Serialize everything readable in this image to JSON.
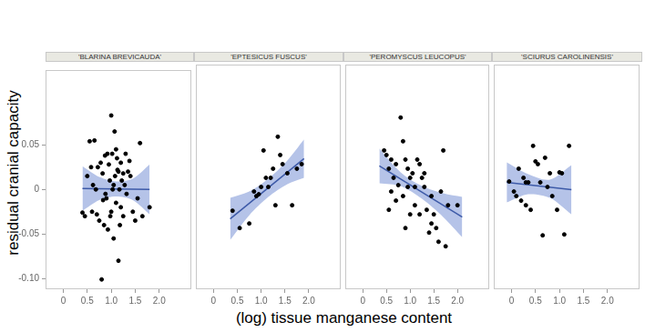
{
  "ylabel": "residual cranial capacity",
  "xlabel": "(log) tissue manganese content",
  "chart_data": [
    {
      "type": "scatter",
      "title": "'BLARINA BREVICAUDA'",
      "xlim": [
        -0.37,
        2.67
      ],
      "ylim": [
        -0.112,
        0.134
      ],
      "xticks": [
        0,
        0.5,
        {
          "value": 1,
          "label": "1.0"
        },
        1.5,
        {
          "value": 2,
          "label": "2.0"
        }
      ],
      "yticks": [
        {
          "value": -0.1,
          "label": "-0.10"
        },
        -0.05,
        0,
        0.05
      ],
      "grid": false,
      "series": [
        {
          "type": "scatter",
          "color": "#000000",
          "x": [
            0.4,
            0.45,
            0.5,
            0.55,
            0.6,
            0.62,
            0.65,
            0.7,
            0.72,
            0.75,
            0.78,
            0.8,
            0.82,
            0.85,
            0.87,
            0.9,
            0.92,
            0.95,
            0.97,
            1.0,
            1.0,
            1.02,
            1.05,
            1.05,
            1.07,
            1.1,
            1.1,
            1.12,
            1.15,
            1.15,
            1.17,
            1.2,
            1.2,
            1.22,
            1.25,
            1.25,
            1.28,
            1.3,
            1.32,
            1.35,
            1.4,
            1.45,
            1.5,
            1.55,
            1.6,
            1.65,
            1.8,
            0.68,
            0.88,
            0.98,
            1.08,
            1.18,
            0.58,
            1.38,
            0.83,
            1.03,
            0.93,
            1.13
          ],
          "values": [
            -0.026,
            -0.03,
            0.015,
            0.054,
            -0.025,
            0.005,
            0.055,
            -0.028,
            0.025,
            -0.035,
            0.03,
            -0.101,
            0.018,
            -0.04,
            0.038,
            -0.01,
            0.04,
            0.028,
            0.01,
            0.083,
            -0.025,
            0.04,
            -0.055,
            0.005,
            0.065,
            0.045,
            -0.015,
            0.035,
            -0.08,
            0.02,
            0.0,
            -0.02,
            0.03,
            0.01,
            0.018,
            -0.03,
            0.005,
            0.04,
            -0.005,
            0.02,
            0.015,
            -0.025,
            -0.035,
            -0.01,
            0.052,
            -0.03,
            -0.02,
            0.0,
            -0.005,
            -0.03,
            0.015,
            -0.04,
            0.025,
            0.032,
            -0.012,
            0.0,
            -0.045,
            0.022
          ]
        },
        {
          "type": "line",
          "color": "#3d5aa8",
          "x": [
            0.4,
            1.8
          ],
          "values": [
            0.001,
            0.0
          ]
        },
        {
          "type": "band",
          "color": "#b5c3e8",
          "x": [
            0.4,
            0.75,
            1.1,
            1.45,
            1.8
          ],
          "lower": [
            -0.024,
            -0.012,
            -0.008,
            -0.012,
            -0.028
          ],
          "upper": [
            0.026,
            0.014,
            0.009,
            0.012,
            0.028
          ]
        }
      ]
    },
    {
      "type": "scatter",
      "title": "'EPTESICUS FUSCUS'",
      "xlim": [
        -0.37,
        2.67
      ],
      "ylim": [
        -0.112,
        0.134
      ],
      "xticks": [
        0,
        0.5,
        {
          "value": 1,
          "label": "1.0"
        },
        1.5,
        {
          "value": 2,
          "label": "2.0"
        }
      ],
      "yticks": [
        {
          "value": -0.1,
          "label": "-0.10"
        },
        -0.05,
        0,
        0.05
      ],
      "grid": false,
      "tick_labels": "x",
      "series": [
        {
          "type": "scatter",
          "color": "#000000",
          "x": [
            0.4,
            0.55,
            0.75,
            0.85,
            0.9,
            0.95,
            1.0,
            1.05,
            1.1,
            1.15,
            1.2,
            1.25,
            1.3,
            1.35,
            1.4,
            1.45,
            1.55,
            1.65,
            1.75,
            1.85
          ],
          "values": [
            -0.026,
            -0.045,
            -0.04,
            -0.005,
            -0.01,
            -0.008,
            0.0,
            0.04,
            0.01,
            0.0,
            0.01,
            0.02,
            -0.02,
            0.055,
            0.035,
            0.025,
            0.015,
            -0.02,
            0.02,
            0.025
          ]
        },
        {
          "type": "line",
          "color": "#3d5aa8",
          "x": [
            0.35,
            1.9
          ],
          "values": [
            -0.035,
            0.031
          ]
        },
        {
          "type": "band",
          "color": "#b5c3e8",
          "x": [
            0.35,
            0.75,
            1.15,
            1.55,
            1.9
          ],
          "lower": [
            -0.058,
            -0.031,
            -0.011,
            0.003,
            0.01
          ],
          "upper": [
            -0.012,
            -0.005,
            0.009,
            0.029,
            0.052
          ]
        }
      ]
    },
    {
      "type": "scatter",
      "title": "'PEROMYSCUS LEUCOPUS'",
      "xlim": [
        -0.37,
        2.67
      ],
      "ylim": [
        -0.112,
        0.134
      ],
      "xticks": [
        0,
        0.5,
        {
          "value": 1,
          "label": "1.0"
        },
        1.5,
        {
          "value": 2,
          "label": "2.0"
        }
      ],
      "yticks": [
        {
          "value": -0.1,
          "label": "-0.10"
        },
        -0.05,
        0,
        0.05
      ],
      "grid": false,
      "tick_labels": "x",
      "series": [
        {
          "type": "scatter",
          "color": "#000000",
          "x": [
            0.45,
            0.5,
            0.55,
            0.6,
            0.6,
            0.65,
            0.7,
            0.75,
            0.8,
            0.85,
            0.85,
            0.9,
            0.9,
            0.95,
            1.0,
            1.0,
            1.05,
            1.1,
            1.1,
            1.15,
            1.2,
            1.2,
            1.25,
            1.3,
            1.35,
            1.4,
            1.45,
            1.5,
            1.55,
            1.6,
            1.65,
            1.7,
            1.75,
            1.8,
            2.0,
            0.7,
            0.95,
            1.3,
            1.45,
            0.55
          ],
          "values": [
            0.04,
            0.035,
            -0.025,
            0.03,
            -0.005,
            0.01,
            0.025,
            0.002,
            0.076,
            0.05,
            -0.01,
            0.03,
            -0.045,
            0.02,
            0.01,
            -0.03,
            0.015,
            0.0,
            -0.02,
            0.03,
            -0.03,
            0.025,
            0.01,
            0.0,
            -0.025,
            -0.05,
            -0.01,
            -0.03,
            -0.045,
            -0.06,
            -0.005,
            0.04,
            -0.065,
            -0.02,
            -0.02,
            -0.015,
            0.0,
            0.015,
            -0.04,
            0.02
          ]
        },
        {
          "type": "line",
          "color": "#3d5aa8",
          "x": [
            0.35,
            2.1
          ],
          "values": [
            0.023,
            -0.033
          ]
        },
        {
          "type": "band",
          "color": "#b5c3e8",
          "x": [
            0.35,
            0.8,
            1.25,
            1.7,
            2.1
          ],
          "lower": [
            0.004,
            0.001,
            -0.013,
            -0.033,
            -0.055
          ],
          "upper": [
            0.042,
            0.016,
            0.001,
            -0.007,
            -0.011
          ]
        }
      ]
    },
    {
      "type": "scatter",
      "title": "'SCIURUS CAROLINENSIS'",
      "xlim": [
        -0.37,
        2.67
      ],
      "ylim": [
        -0.112,
        0.134
      ],
      "xticks": [
        0,
        0.5,
        {
          "value": 1,
          "label": "1.0"
        },
        1.5,
        {
          "value": 2,
          "label": "2.0"
        }
      ],
      "yticks": [
        {
          "value": -0.1,
          "label": "-0.10"
        },
        -0.05,
        0,
        0.05
      ],
      "grid": false,
      "tick_labels": "x",
      "series": [
        {
          "type": "scatter",
          "color": "#000000",
          "x": [
            -0.05,
            0.05,
            0.1,
            0.15,
            0.2,
            0.25,
            0.3,
            0.35,
            0.4,
            0.45,
            0.5,
            0.55,
            0.6,
            0.65,
            0.7,
            0.75,
            0.8,
            0.85,
            0.95,
            1.0,
            1.05,
            1.1,
            1.2,
            0.3
          ],
          "values": [
            0.006,
            -0.005,
            -0.01,
            0.02,
            -0.015,
            0.01,
            -0.02,
            0.005,
            -0.025,
            0.045,
            0.028,
            0.025,
            0.005,
            -0.053,
            0.032,
            0.0,
            0.015,
            -0.01,
            -0.025,
            0.016,
            0.015,
            -0.052,
            0.045,
            0.005
          ]
        },
        {
          "type": "line",
          "color": "#3d5aa8",
          "x": [
            -0.1,
            1.25
          ],
          "values": [
            0.005,
            -0.003
          ]
        },
        {
          "type": "band",
          "color": "#b5c3e8",
          "x": [
            -0.1,
            0.35,
            0.8,
            1.25
          ],
          "lower": [
            -0.017,
            -0.008,
            -0.012,
            -0.03
          ],
          "upper": [
            0.027,
            0.014,
            0.008,
            0.024
          ]
        }
      ]
    }
  ]
}
